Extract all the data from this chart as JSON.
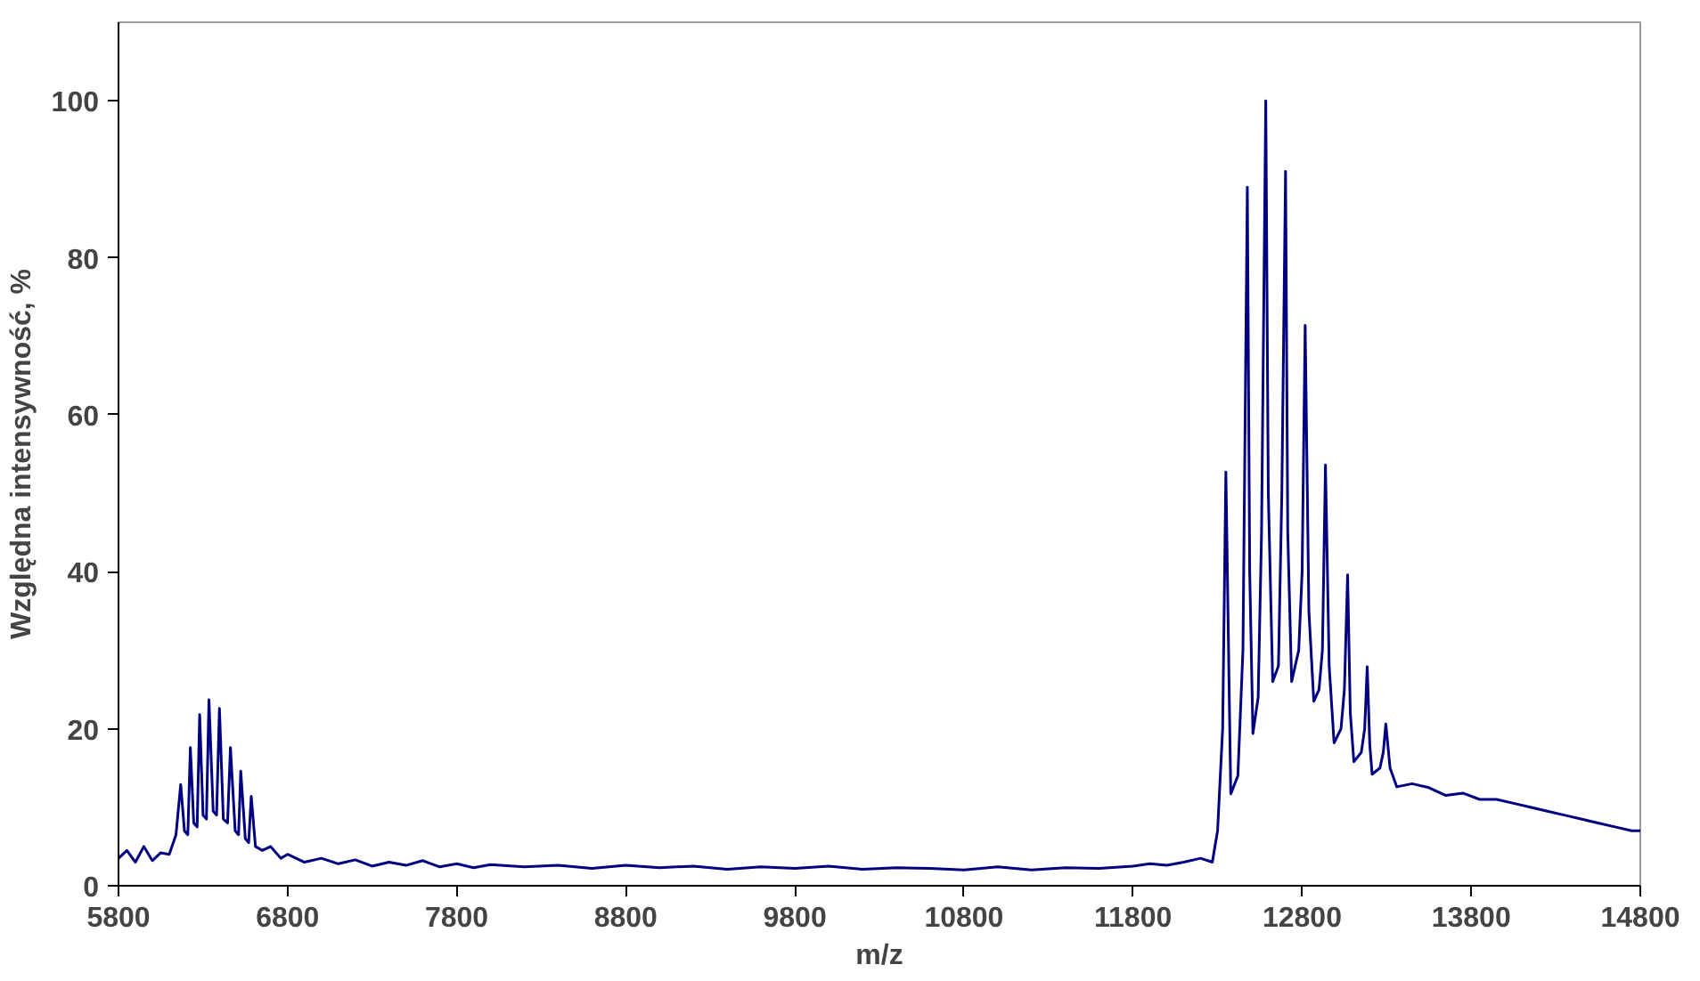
{
  "chart_data": {
    "type": "line",
    "xlabel": "m/z",
    "ylabel": "Względna intensywność, %",
    "xlim": [
      5800,
      14800
    ],
    "ylim": [
      0,
      110
    ],
    "xticks": [
      5800,
      6800,
      7800,
      8800,
      9800,
      10800,
      11800,
      12800,
      13800,
      14800
    ],
    "yticks": [
      0,
      20,
      40,
      60,
      80,
      100
    ],
    "marker": "none",
    "line_style": "solid",
    "series": [
      {
        "color": "#000080",
        "x": [
          5800,
          5850,
          5900,
          5950,
          6000,
          6050,
          6100,
          6140,
          6168,
          6190,
          6210,
          6225,
          6245,
          6265,
          6280,
          6300,
          6320,
          6335,
          6360,
          6380,
          6397,
          6420,
          6445,
          6462,
          6490,
          6510,
          6523,
          6550,
          6570,
          6585,
          6610,
          6650,
          6700,
          6760,
          6800,
          6900,
          7000,
          7100,
          7200,
          7300,
          7400,
          7500,
          7600,
          7700,
          7800,
          7900,
          8000,
          8200,
          8400,
          8600,
          8800,
          9000,
          9200,
          9400,
          9600,
          9800,
          10000,
          10200,
          10400,
          10600,
          10800,
          11000,
          11200,
          11400,
          11600,
          11800,
          11900,
          12000,
          12100,
          12200,
          12269,
          12300,
          12330,
          12349,
          12365,
          12378,
          12420,
          12450,
          12476,
          12490,
          12509,
          12540,
          12560,
          12585,
          12600,
          12626,
          12660,
          12680,
          12702,
          12715,
          12738,
          12780,
          12800,
          12818,
          12840,
          12869,
          12900,
          12920,
          12938,
          12960,
          12989,
          13030,
          13050,
          13069,
          13085,
          13106,
          13150,
          13170,
          13185,
          13200,
          13214,
          13260,
          13280,
          13295,
          13320,
          13360,
          13450,
          13550,
          13650,
          13750,
          13850,
          13950,
          14050,
          14150,
          14250,
          14350,
          14450,
          14550,
          14650,
          14750,
          14800
        ],
        "values": [
          3.5,
          4.5,
          3,
          5,
          3.2,
          4.2,
          4,
          6.5,
          12.9,
          7,
          6.5,
          17.6,
          8,
          7.5,
          21.8,
          9,
          8.5,
          23.7,
          9.5,
          9,
          22.6,
          8.5,
          8,
          17.6,
          7,
          6.5,
          14.6,
          6,
          5.5,
          11.4,
          5,
          4.5,
          5,
          3.5,
          4,
          3,
          3.5,
          2.8,
          3.3,
          2.5,
          3,
          2.6,
          3.2,
          2.4,
          2.8,
          2.3,
          2.7,
          2.4,
          2.6,
          2.2,
          2.6,
          2.3,
          2.5,
          2.1,
          2.4,
          2.2,
          2.5,
          2.1,
          2.3,
          2.2,
          2,
          2.4,
          2,
          2.3,
          2.2,
          2.5,
          2.8,
          2.6,
          3,
          3.5,
          3,
          7,
          20,
          52.7,
          30,
          11.7,
          14,
          30,
          89,
          40,
          19.4,
          24,
          45,
          100,
          50,
          26,
          28,
          50,
          91,
          45,
          26,
          30,
          40,
          71.4,
          35,
          23.5,
          25,
          30,
          53.6,
          28,
          18.2,
          20,
          25,
          39.6,
          22,
          15.8,
          17,
          20,
          27.9,
          18,
          14.2,
          15,
          17,
          20.6,
          15,
          12.6,
          13,
          12.5,
          11.5,
          11.8,
          11,
          11,
          10.5,
          10,
          9.5,
          9,
          8.5,
          8,
          7.5,
          7,
          7
        ]
      }
    ]
  }
}
